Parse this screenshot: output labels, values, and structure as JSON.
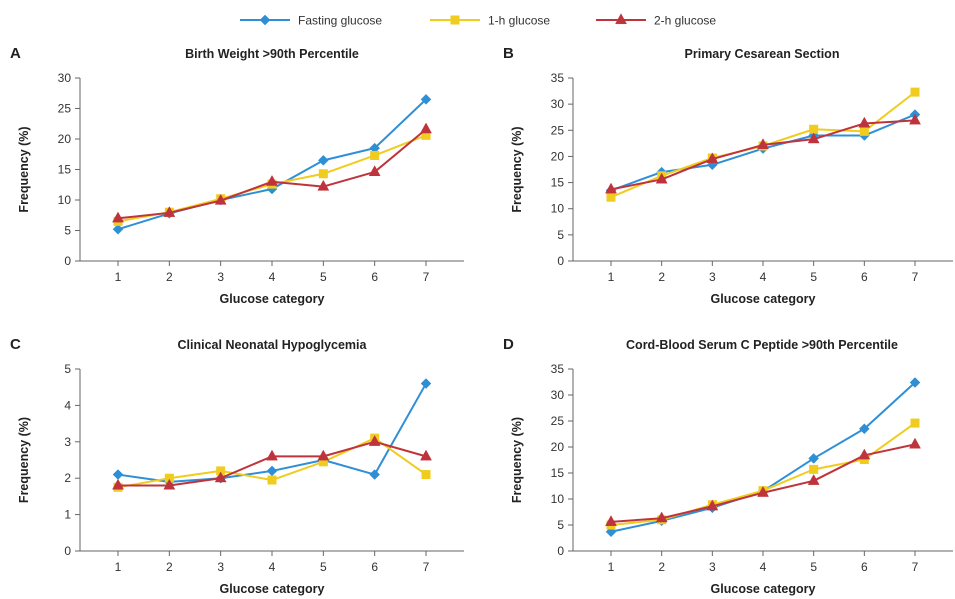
{
  "legend": [
    {
      "name": "Fasting glucose",
      "color": "#2f8fd6",
      "marker": "diamond"
    },
    {
      "name": "1-h glucose",
      "color": "#f0cc1e",
      "marker": "square"
    },
    {
      "name": "2-h glucose",
      "color": "#bf343c",
      "marker": "triangle"
    }
  ],
  "chart_data": [
    {
      "type": "line",
      "panel": "A",
      "title": "Birth Weight >90th Percentile",
      "xlabel": "Glucose category",
      "ylabel": "Frequency (%)",
      "x": [
        1,
        2,
        3,
        4,
        5,
        6,
        7
      ],
      "ylim": [
        0,
        30
      ],
      "yticks": [
        0,
        5,
        10,
        15,
        20,
        25,
        30
      ],
      "grid": false,
      "series": [
        {
          "name": "Fasting glucose",
          "values": [
            5.2,
            7.8,
            10.0,
            11.8,
            16.5,
            18.5,
            26.5
          ]
        },
        {
          "name": "1-h glucose",
          "values": [
            6.5,
            8.0,
            10.2,
            12.6,
            14.3,
            17.3,
            20.6
          ]
        },
        {
          "name": "2-h glucose",
          "values": [
            7.0,
            7.9,
            9.9,
            13.0,
            12.2,
            14.6,
            21.6
          ]
        }
      ]
    },
    {
      "type": "line",
      "panel": "B",
      "title": "Primary Cesarean Section",
      "xlabel": "Glucose category",
      "ylabel": "Frequency (%)",
      "x": [
        1,
        2,
        3,
        4,
        5,
        6,
        7
      ],
      "ylim": [
        0,
        35
      ],
      "yticks": [
        0,
        5,
        10,
        15,
        20,
        25,
        30,
        35
      ],
      "grid": false,
      "series": [
        {
          "name": "Fasting glucose",
          "values": [
            13.5,
            17.0,
            18.4,
            21.5,
            24.0,
            24.0,
            28.0
          ]
        },
        {
          "name": "1-h glucose",
          "values": [
            12.2,
            16.3,
            19.7,
            22.0,
            25.2,
            24.8,
            32.3
          ]
        },
        {
          "name": "2-h glucose",
          "values": [
            13.7,
            15.6,
            19.5,
            22.2,
            23.3,
            26.3,
            26.9
          ]
        }
      ]
    },
    {
      "type": "line",
      "panel": "C",
      "title": "Clinical Neonatal Hypoglycemia",
      "xlabel": "Glucose category",
      "ylabel": "Frequency (%)",
      "x": [
        1,
        2,
        3,
        4,
        5,
        6,
        7
      ],
      "ylim": [
        0,
        5
      ],
      "yticks": [
        0,
        1,
        2,
        3,
        4,
        5
      ],
      "grid": false,
      "series": [
        {
          "name": "Fasting glucose",
          "values": [
            2.1,
            1.9,
            2.0,
            2.2,
            2.5,
            2.1,
            4.6
          ]
        },
        {
          "name": "1-h glucose",
          "values": [
            1.75,
            2.0,
            2.2,
            1.95,
            2.45,
            3.1,
            2.1
          ]
        },
        {
          "name": "2-h glucose",
          "values": [
            1.8,
            1.8,
            2.0,
            2.6,
            2.6,
            3.0,
            2.6
          ]
        }
      ]
    },
    {
      "type": "line",
      "panel": "D",
      "title": "Cord-Blood Serum C Peptide >90th Percentile",
      "xlabel": "Glucose category",
      "ylabel": "Frequency (%)",
      "x": [
        1,
        2,
        3,
        4,
        5,
        6,
        7
      ],
      "ylim": [
        0,
        35
      ],
      "yticks": [
        0,
        5,
        10,
        15,
        20,
        25,
        30,
        35
      ],
      "grid": false,
      "series": [
        {
          "name": "Fasting glucose",
          "values": [
            3.7,
            5.8,
            8.3,
            11.5,
            17.8,
            23.5,
            32.4
          ]
        },
        {
          "name": "1-h glucose",
          "values": [
            5.0,
            6.0,
            8.9,
            11.6,
            15.7,
            17.6,
            24.6
          ]
        },
        {
          "name": "2-h glucose",
          "values": [
            5.6,
            6.3,
            8.6,
            11.2,
            13.5,
            18.4,
            20.5
          ]
        }
      ]
    }
  ]
}
